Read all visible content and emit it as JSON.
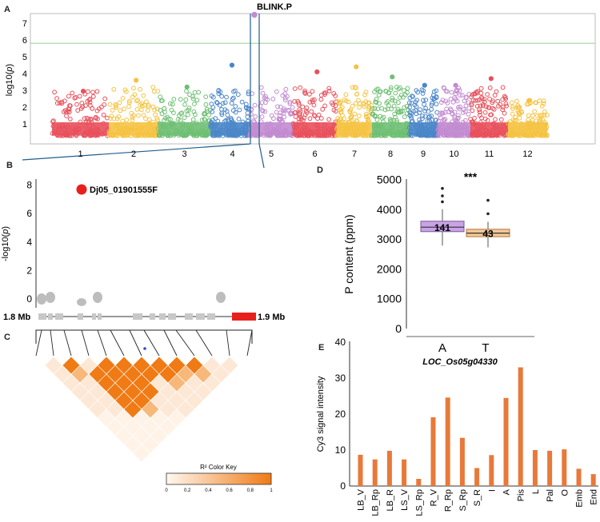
{
  "panel_labels": {
    "a": "A",
    "b": "B",
    "c": "C",
    "d": "D",
    "e": "E"
  },
  "colors": {
    "chromosomes": [
      "#e8505b",
      "#f5c342",
      "#6fbf73",
      "#4a86c8",
      "#c28bd0",
      "#e8505b",
      "#f5c342",
      "#6fbf73",
      "#4a86c8",
      "#c28bd0",
      "#e8505b",
      "#f5c342"
    ],
    "threshold": "#9fd49f",
    "highlight": "#1f5e8c",
    "lead_snp": "#e8201c",
    "gene_bar": "#c8c8c8",
    "gene_red": "#e8201c",
    "box_A": "#c9a3e6",
    "box_T": "#f5c796",
    "bar": "#e8793a",
    "ld_high": "#f07a14"
  },
  "chart_data": [
    {
      "id": "manhattan",
      "type": "scatter",
      "title": "BLINK.P",
      "xlabel": "",
      "ylabel": "log10(p)",
      "ylim": [
        0,
        8
      ],
      "yticks": [
        1,
        2,
        3,
        4,
        5,
        6,
        7
      ],
      "categories": [
        "1",
        "2",
        "3",
        "4",
        "5",
        "6",
        "7",
        "8",
        "9",
        "10",
        "11",
        "12"
      ],
      "threshold": 5.8,
      "chromosome_peaks": [
        2.95,
        3.6,
        3.2,
        4.5,
        7.5,
        4.1,
        4.4,
        3.8,
        3.3,
        3.3,
        3.7,
        2.4
      ],
      "top_snp": {
        "chromosome": "5",
        "value": 7.5
      }
    },
    {
      "id": "regional",
      "type": "scatter",
      "title": "",
      "xlabel": "",
      "ylabel": "-log10(p)",
      "ylim": [
        0,
        8
      ],
      "yticks": [
        "0",
        "2",
        "4",
        "6",
        "8"
      ],
      "x_start_label": "1.8 Mb",
      "x_end_label": "1.9 Mb",
      "lead_snp_label": "Dj05_01901555F",
      "lead_snp_value": 7.5
    },
    {
      "id": "ld_heatmap",
      "type": "heatmap",
      "color_key_title": "R² Color Key",
      "color_key_ticks": [
        "0",
        "0.2",
        "0.4",
        "0.6",
        "0.8",
        "1"
      ]
    },
    {
      "id": "boxplot",
      "type": "bar",
      "title": "***",
      "ylabel": "P content (ppm)",
      "ylim": [
        0,
        5000
      ],
      "yticks": [
        "0",
        "1000",
        "2000",
        "3000",
        "4000",
        "5000"
      ],
      "categories": [
        "A",
        "T"
      ],
      "groups": [
        {
          "name": "A",
          "n": "141",
          "q1": 3250,
          "median": 3400,
          "q3": 3600,
          "whisker_low": 2780,
          "whisker_high": 4000,
          "outliers": [
            4250,
            4450,
            4700
          ]
        },
        {
          "name": "T",
          "n": "43",
          "q1": 3080,
          "median": 3200,
          "q3": 3330,
          "whisker_low": 2720,
          "whisker_high": 3580,
          "outliers": [
            3850,
            4300
          ]
        }
      ]
    },
    {
      "id": "expression",
      "type": "bar",
      "title": "LOC_Os05g04330",
      "ylabel": "Cy3 signal intensity",
      "ylim": [
        0,
        40
      ],
      "yticks": [
        "0",
        "10",
        "20",
        "30",
        "40"
      ],
      "categories": [
        "LB_V",
        "LB_Rp",
        "LB_R",
        "LS_V",
        "LS_Rp",
        "R_V",
        "R_Rp",
        "S_Rp",
        "S_R",
        "I",
        "A",
        "Pis",
        "L",
        "Pal",
        "O",
        "Emb",
        "End"
      ],
      "values": [
        8.7,
        7.4,
        9.8,
        7.4,
        2.0,
        19.1,
        24.6,
        13.4,
        5.0,
        8.6,
        24.5,
        33.0,
        10.0,
        9.8,
        10.2,
        4.8,
        3.3
      ]
    }
  ]
}
